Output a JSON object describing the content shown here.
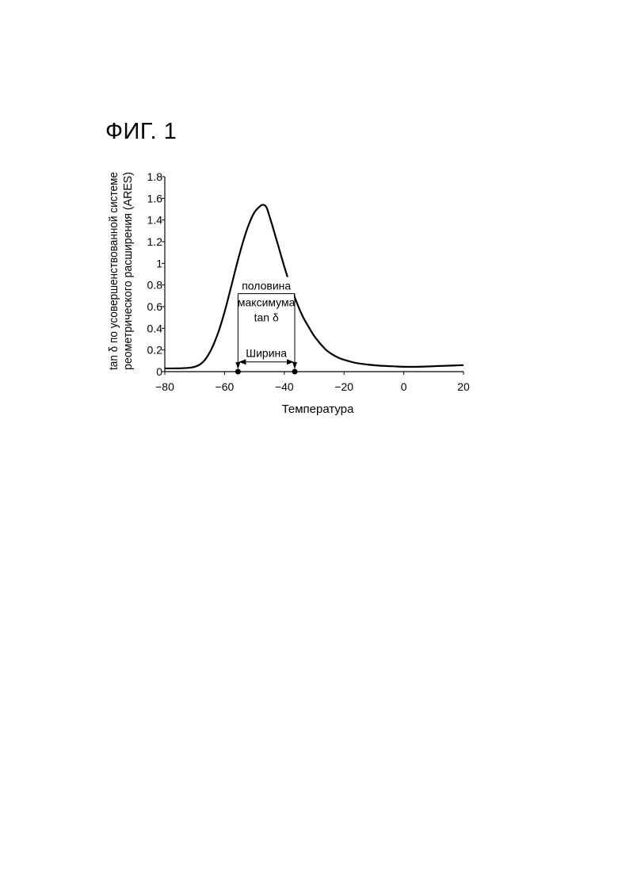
{
  "page": {
    "figure_label": "ФИГ. 1"
  },
  "chart_data": {
    "type": "line",
    "xlabel": "Температура",
    "ylabel_lines": [
      "tan δ по усовершенствованной системе",
      "реометрического расширения (ARES)"
    ],
    "xlim": [
      -80,
      20
    ],
    "ylim": [
      0,
      1.8
    ],
    "x_ticks": [
      -80,
      -60,
      -40,
      -20,
      0,
      20
    ],
    "x_tick_labels": [
      "−80",
      "−60",
      "−40",
      "−20",
      "0",
      "20"
    ],
    "y_ticks": [
      0,
      0.2,
      0.4,
      0.6,
      0.8,
      1,
      1.2,
      1.4,
      1.6,
      1.8
    ],
    "y_tick_labels": [
      "0",
      "0.2",
      "0.4",
      "0.6",
      "0.8",
      "1",
      "1.2",
      "1.4",
      "1.6",
      "1.8"
    ],
    "grid": false,
    "series": [
      {
        "x": [
          -80,
          -76,
          -72,
          -70,
          -68,
          -66,
          -64,
          -62,
          -60,
          -58,
          -56,
          -54,
          -52,
          -50,
          -48,
          -47,
          -46,
          -45,
          -44,
          -42,
          -40,
          -38,
          -36,
          -34,
          -32,
          -30,
          -28,
          -26,
          -24,
          -22,
          -20,
          -16,
          -12,
          -8,
          -4,
          0,
          5,
          10,
          15,
          20
        ],
        "y": [
          0.03,
          0.03,
          0.035,
          0.045,
          0.07,
          0.13,
          0.23,
          0.37,
          0.55,
          0.76,
          0.98,
          1.18,
          1.35,
          1.47,
          1.53,
          1.54,
          1.52,
          1.44,
          1.35,
          1.16,
          0.97,
          0.8,
          0.65,
          0.52,
          0.42,
          0.33,
          0.26,
          0.2,
          0.16,
          0.13,
          0.11,
          0.08,
          0.065,
          0.055,
          0.05,
          0.045,
          0.045,
          0.05,
          0.055,
          0.06
        ]
      }
    ],
    "annotation": {
      "lines": [
        "половина",
        "максимума",
        "tan δ"
      ],
      "width_label": "Ширина",
      "half_max_y": 0.72,
      "x_left": -55.5,
      "x_right": -36.5
    }
  }
}
